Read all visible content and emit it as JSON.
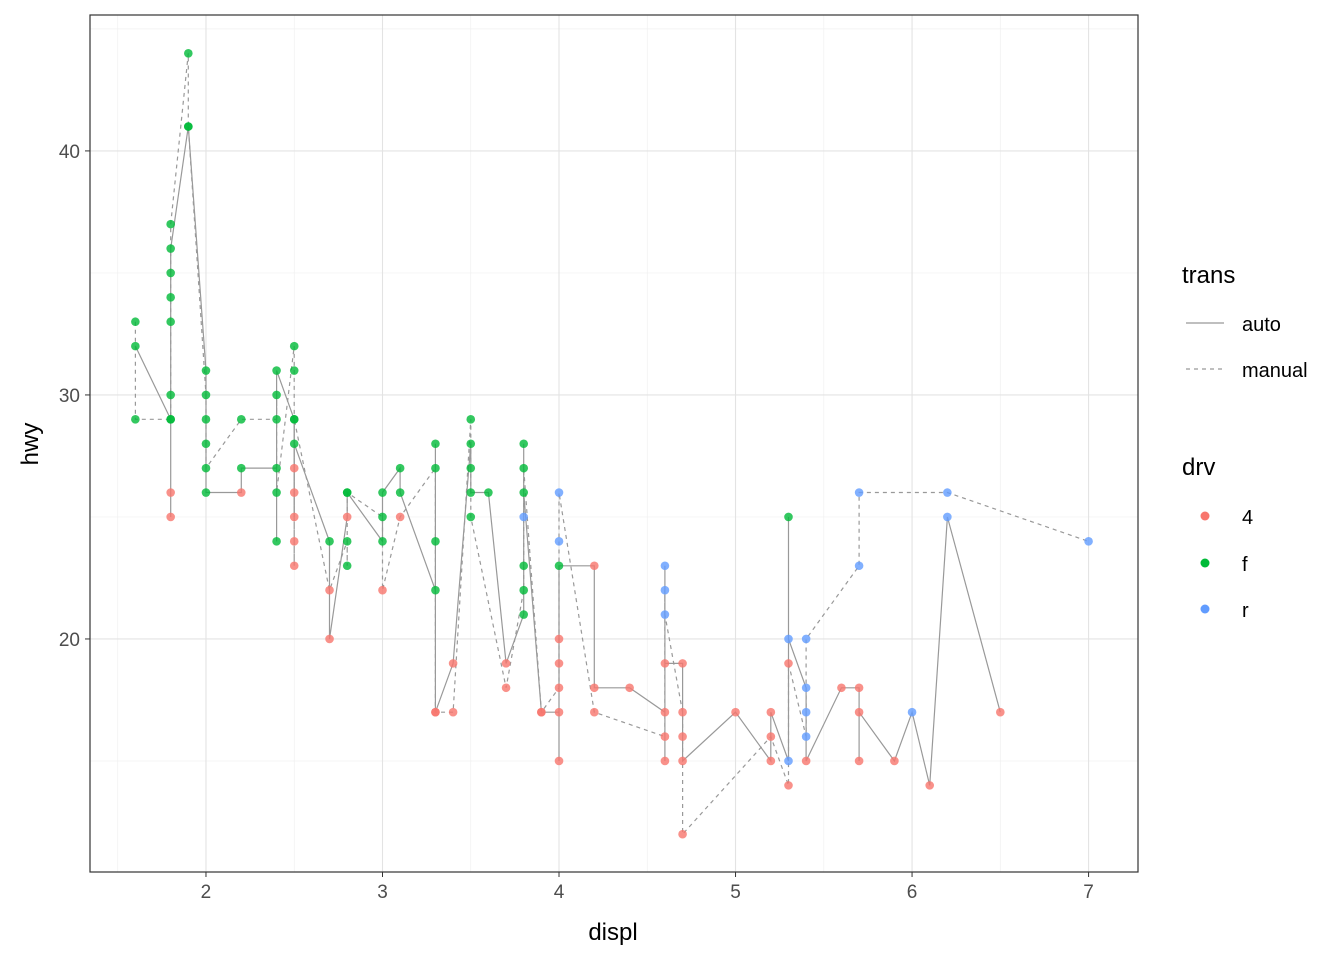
{
  "chart_data": {
    "type": "scatter",
    "xlabel": "displ",
    "ylabel": "hwy",
    "xlim": [
      1.343,
      7.28
    ],
    "ylim": [
      10.45,
      45.57
    ],
    "x_ticks": [
      2,
      3,
      4,
      5,
      6,
      7
    ],
    "y_ticks": [
      20,
      30,
      40
    ],
    "grid": true,
    "legend_placement": "right",
    "legends": {
      "trans": {
        "title": "trans",
        "entries": [
          {
            "label": "auto",
            "linetype": "solid"
          },
          {
            "label": "manual",
            "linetype": "dashed"
          }
        ]
      },
      "drv": {
        "title": "drv",
        "entries": [
          {
            "label": "4",
            "color": "#F8766D"
          },
          {
            "label": "f",
            "color": "#00BA38"
          },
          {
            "label": "r",
            "color": "#619CFF"
          }
        ]
      }
    },
    "series": [
      {
        "name": "auto",
        "points": [
          [
            1.6,
            32,
            "f"
          ],
          [
            1.8,
            29,
            "f"
          ],
          [
            1.8,
            25,
            "4"
          ],
          [
            1.8,
            26,
            "4"
          ],
          [
            1.8,
            30,
            "f"
          ],
          [
            1.8,
            33,
            "f"
          ],
          [
            1.8,
            36,
            "f"
          ],
          [
            1.9,
            41,
            "f"
          ],
          [
            2.0,
            31,
            "f"
          ],
          [
            2.0,
            28,
            "f"
          ],
          [
            2.0,
            26,
            "f"
          ],
          [
            2.2,
            26,
            "4"
          ],
          [
            2.2,
            27,
            "f"
          ],
          [
            2.4,
            27,
            "f"
          ],
          [
            2.4,
            24,
            "f"
          ],
          [
            2.4,
            31,
            "f"
          ],
          [
            2.5,
            29,
            "f"
          ],
          [
            2.5,
            27,
            "4"
          ],
          [
            2.5,
            26,
            "4"
          ],
          [
            2.5,
            25,
            "4"
          ],
          [
            2.5,
            28,
            "f"
          ],
          [
            2.7,
            24,
            "f"
          ],
          [
            2.7,
            20,
            "4"
          ],
          [
            2.8,
            25,
            "4"
          ],
          [
            2.8,
            26,
            "f"
          ],
          [
            3.0,
            24,
            "f"
          ],
          [
            3.0,
            26,
            "f"
          ],
          [
            3.1,
            27,
            "f"
          ],
          [
            3.1,
            26,
            "f"
          ],
          [
            3.3,
            22,
            "f"
          ],
          [
            3.3,
            28,
            "f"
          ],
          [
            3.3,
            17,
            "4"
          ],
          [
            3.4,
            19,
            "4"
          ],
          [
            3.5,
            28,
            "f"
          ],
          [
            3.5,
            26,
            "f"
          ],
          [
            3.6,
            26,
            "f"
          ],
          [
            3.7,
            19,
            "4"
          ],
          [
            3.8,
            21,
            "f"
          ],
          [
            3.8,
            28,
            "f"
          ],
          [
            3.8,
            26,
            "f"
          ],
          [
            3.9,
            17,
            "4"
          ],
          [
            4.0,
            17,
            "4"
          ],
          [
            4.0,
            15,
            "4"
          ],
          [
            4.0,
            20,
            "4"
          ],
          [
            4.0,
            23,
            "f"
          ],
          [
            4.2,
            23,
            "4"
          ],
          [
            4.2,
            18,
            "4"
          ],
          [
            4.4,
            18,
            "4"
          ],
          [
            4.6,
            17,
            "4"
          ],
          [
            4.6,
            15,
            "4"
          ],
          [
            4.6,
            23,
            "r"
          ],
          [
            4.6,
            19,
            "4"
          ],
          [
            4.7,
            19,
            "4"
          ],
          [
            4.7,
            15,
            "4"
          ],
          [
            5.0,
            17,
            "4"
          ],
          [
            5.2,
            15,
            "4"
          ],
          [
            5.2,
            17,
            "4"
          ],
          [
            5.3,
            15,
            "r"
          ],
          [
            5.3,
            25,
            "f"
          ],
          [
            5.3,
            20,
            "r"
          ],
          [
            5.4,
            18,
            "r"
          ],
          [
            5.4,
            15,
            "4"
          ],
          [
            5.6,
            18,
            "4"
          ],
          [
            5.7,
            18,
            "4"
          ],
          [
            5.7,
            15,
            "4"
          ],
          [
            5.7,
            17,
            "4"
          ],
          [
            5.9,
            15,
            "4"
          ],
          [
            6.0,
            17,
            "r"
          ],
          [
            6.1,
            14,
            "4"
          ],
          [
            6.2,
            25,
            "r"
          ],
          [
            6.5,
            17,
            "4"
          ]
        ]
      },
      {
        "name": "manual",
        "points": [
          [
            1.6,
            33,
            "f"
          ],
          [
            1.6,
            29,
            "f"
          ],
          [
            1.8,
            29,
            "f"
          ],
          [
            1.8,
            34,
            "f"
          ],
          [
            1.8,
            35,
            "f"
          ],
          [
            1.8,
            37,
            "f"
          ],
          [
            1.9,
            44,
            "f"
          ],
          [
            1.9,
            41,
            "f"
          ],
          [
            2.0,
            30,
            "f"
          ],
          [
            2.0,
            29,
            "f"
          ],
          [
            2.0,
            27,
            "f"
          ],
          [
            2.2,
            29,
            "f"
          ],
          [
            2.4,
            29,
            "f"
          ],
          [
            2.4,
            30,
            "f"
          ],
          [
            2.4,
            26,
            "f"
          ],
          [
            2.5,
            32,
            "f"
          ],
          [
            2.5,
            31,
            "f"
          ],
          [
            2.5,
            24,
            "4"
          ],
          [
            2.5,
            23,
            "4"
          ],
          [
            2.5,
            29,
            "f"
          ],
          [
            2.7,
            22,
            "4"
          ],
          [
            2.8,
            24,
            "f"
          ],
          [
            2.8,
            23,
            "f"
          ],
          [
            2.8,
            26,
            "f"
          ],
          [
            3.0,
            25,
            "f"
          ],
          [
            3.0,
            22,
            "4"
          ],
          [
            3.1,
            25,
            "4"
          ],
          [
            3.3,
            27,
            "f"
          ],
          [
            3.3,
            24,
            "f"
          ],
          [
            3.3,
            17,
            "4"
          ],
          [
            3.4,
            17,
            "4"
          ],
          [
            3.5,
            29,
            "f"
          ],
          [
            3.5,
            27,
            "f"
          ],
          [
            3.5,
            25,
            "f"
          ],
          [
            3.7,
            18,
            "4"
          ],
          [
            3.8,
            22,
            "f"
          ],
          [
            3.8,
            23,
            "f"
          ],
          [
            3.8,
            25,
            "r"
          ],
          [
            3.8,
            27,
            "f"
          ],
          [
            3.9,
            17,
            "4"
          ],
          [
            4.0,
            18,
            "4"
          ],
          [
            4.0,
            19,
            "4"
          ],
          [
            4.0,
            24,
            "r"
          ],
          [
            4.0,
            26,
            "r"
          ],
          [
            4.2,
            17,
            "4"
          ],
          [
            4.6,
            16,
            "4"
          ],
          [
            4.6,
            22,
            "r"
          ],
          [
            4.6,
            21,
            "r"
          ],
          [
            4.7,
            17,
            "4"
          ],
          [
            4.7,
            16,
            "4"
          ],
          [
            4.7,
            12,
            "4"
          ],
          [
            5.2,
            16,
            "4"
          ],
          [
            5.3,
            14,
            "4"
          ],
          [
            5.3,
            19,
            "4"
          ],
          [
            5.4,
            16,
            "r"
          ],
          [
            5.4,
            17,
            "r"
          ],
          [
            5.4,
            20,
            "r"
          ],
          [
            5.7,
            23,
            "r"
          ],
          [
            5.7,
            26,
            "r"
          ],
          [
            6.2,
            26,
            "r"
          ],
          [
            7.0,
            24,
            "r"
          ]
        ]
      }
    ]
  }
}
